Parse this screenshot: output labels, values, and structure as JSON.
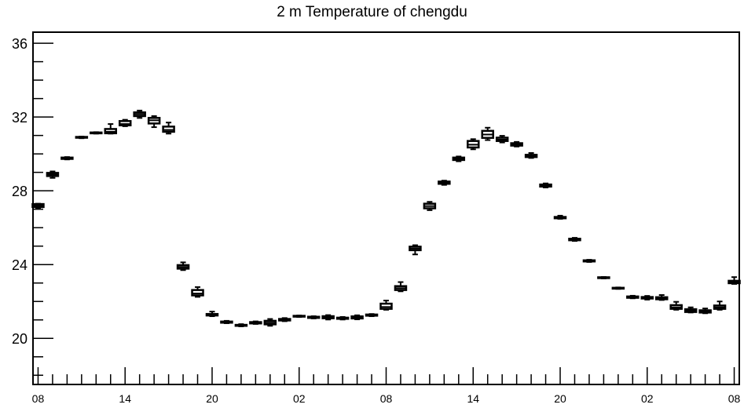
{
  "chart_data": {
    "type": "box",
    "title": "2 m Temperature of chengdu",
    "xlabel": "",
    "ylabel": "",
    "ylim": [
      17.5,
      36.6
    ],
    "yticks": [
      20,
      24,
      28,
      32,
      36
    ],
    "xlim": [
      -0.35,
      48.35
    ],
    "xticks": [
      {
        "x": 0,
        "label": "08"
      },
      {
        "x": 6,
        "label": "14"
      },
      {
        "x": 12,
        "label": "20"
      },
      {
        "x": 18,
        "label": "02"
      },
      {
        "x": 24,
        "label": "08"
      },
      {
        "x": 30,
        "label": "14"
      },
      {
        "x": 36,
        "label": "20"
      },
      {
        "x": 42,
        "label": "02"
      },
      {
        "x": 48,
        "label": "08"
      }
    ],
    "grid": false,
    "legend": "none",
    "colors": {
      "box": "#000000",
      "background": "#ffffff"
    },
    "boxes": [
      {
        "x": 0,
        "min": 27.05,
        "q1": 27.12,
        "median": 27.2,
        "q3": 27.28,
        "max": 27.3
      },
      {
        "x": 1,
        "min": 28.7,
        "q1": 28.8,
        "median": 28.88,
        "q3": 28.97,
        "max": 29.05
      },
      {
        "x": 2,
        "min": 29.7,
        "q1": 29.73,
        "median": 29.76,
        "q3": 29.8,
        "max": 29.83
      },
      {
        "x": 3,
        "min": 30.85,
        "q1": 30.88,
        "median": 30.9,
        "q3": 30.92,
        "max": 30.94
      },
      {
        "x": 4,
        "min": 31.1,
        "q1": 31.12,
        "median": 31.14,
        "q3": 31.16,
        "max": 31.18
      },
      {
        "x": 5,
        "min": 31.1,
        "q1": 31.12,
        "median": 31.2,
        "q3": 31.35,
        "max": 31.62
      },
      {
        "x": 6,
        "min": 31.5,
        "q1": 31.55,
        "median": 31.62,
        "q3": 31.78,
        "max": 31.85
      },
      {
        "x": 7,
        "min": 31.95,
        "q1": 32.05,
        "median": 32.15,
        "q3": 32.25,
        "max": 32.35
      },
      {
        "x": 8,
        "min": 31.45,
        "q1": 31.65,
        "median": 31.82,
        "q3": 31.95,
        "max": 32.05
      },
      {
        "x": 9,
        "min": 31.1,
        "q1": 31.2,
        "median": 31.3,
        "q3": 31.48,
        "max": 31.7
      },
      {
        "x": 10,
        "min": 23.7,
        "q1": 23.78,
        "median": 23.87,
        "q3": 23.97,
        "max": 24.12
      },
      {
        "x": 11,
        "min": 22.25,
        "q1": 22.33,
        "median": 22.43,
        "q3": 22.62,
        "max": 22.78
      },
      {
        "x": 12,
        "min": 21.2,
        "q1": 21.24,
        "median": 21.28,
        "q3": 21.32,
        "max": 21.45
      },
      {
        "x": 13,
        "min": 20.82,
        "q1": 20.85,
        "median": 20.88,
        "q3": 20.91,
        "max": 20.95
      },
      {
        "x": 14,
        "min": 20.65,
        "q1": 20.68,
        "median": 20.7,
        "q3": 20.73,
        "max": 20.77
      },
      {
        "x": 15,
        "min": 20.78,
        "q1": 20.81,
        "median": 20.85,
        "q3": 20.88,
        "max": 20.92
      },
      {
        "x": 16,
        "min": 20.68,
        "q1": 20.76,
        "median": 20.85,
        "q3": 20.95,
        "max": 21.05
      },
      {
        "x": 17,
        "min": 20.93,
        "q1": 20.97,
        "median": 21.01,
        "q3": 21.05,
        "max": 21.1
      },
      {
        "x": 18,
        "min": 21.16,
        "q1": 21.18,
        "median": 21.2,
        "q3": 21.22,
        "max": 21.24
      },
      {
        "x": 19,
        "min": 21.08,
        "q1": 21.11,
        "median": 21.14,
        "q3": 21.17,
        "max": 21.2
      },
      {
        "x": 20,
        "min": 21.02,
        "q1": 21.09,
        "median": 21.15,
        "q3": 21.2,
        "max": 21.26
      },
      {
        "x": 21,
        "min": 21.02,
        "q1": 21.06,
        "median": 21.09,
        "q3": 21.12,
        "max": 21.16
      },
      {
        "x": 22,
        "min": 21.03,
        "q1": 21.08,
        "median": 21.14,
        "q3": 21.19,
        "max": 21.25
      },
      {
        "x": 23,
        "min": 21.2,
        "q1": 21.23,
        "median": 21.26,
        "q3": 21.29,
        "max": 21.32
      },
      {
        "x": 24,
        "min": 21.55,
        "q1": 21.6,
        "median": 21.7,
        "q3": 21.88,
        "max": 22.05
      },
      {
        "x": 25,
        "min": 22.55,
        "q1": 22.62,
        "median": 22.72,
        "q3": 22.83,
        "max": 23.05
      },
      {
        "x": 26,
        "min": 24.55,
        "q1": 24.78,
        "median": 24.87,
        "q3": 24.97,
        "max": 25.05
      },
      {
        "x": 27,
        "min": 26.95,
        "q1": 27.05,
        "median": 27.17,
        "q3": 27.3,
        "max": 27.4
      },
      {
        "x": 28,
        "min": 28.32,
        "q1": 28.38,
        "median": 28.43,
        "q3": 28.5,
        "max": 28.55
      },
      {
        "x": 29,
        "min": 29.6,
        "q1": 29.67,
        "median": 29.74,
        "q3": 29.8,
        "max": 29.86
      },
      {
        "x": 30,
        "min": 30.25,
        "q1": 30.35,
        "median": 30.5,
        "q3": 30.7,
        "max": 30.8
      },
      {
        "x": 31,
        "min": 30.75,
        "q1": 30.87,
        "median": 31.05,
        "q3": 31.25,
        "max": 31.42
      },
      {
        "x": 32,
        "min": 30.62,
        "q1": 30.7,
        "median": 30.78,
        "q3": 30.88,
        "max": 30.98
      },
      {
        "x": 33,
        "min": 30.4,
        "q1": 30.45,
        "median": 30.52,
        "q3": 30.58,
        "max": 30.65
      },
      {
        "x": 34,
        "min": 29.78,
        "q1": 29.83,
        "median": 29.88,
        "q3": 29.95,
        "max": 30.05
      },
      {
        "x": 35,
        "min": 28.18,
        "q1": 28.23,
        "median": 28.28,
        "q3": 28.34,
        "max": 28.4
      },
      {
        "x": 36,
        "min": 26.48,
        "q1": 26.51,
        "median": 26.54,
        "q3": 26.58,
        "max": 26.65
      },
      {
        "x": 37,
        "min": 25.28,
        "q1": 25.32,
        "median": 25.36,
        "q3": 25.4,
        "max": 25.45
      },
      {
        "x": 38,
        "min": 24.14,
        "q1": 24.17,
        "median": 24.2,
        "q3": 24.23,
        "max": 24.26
      },
      {
        "x": 39,
        "min": 23.25,
        "q1": 23.27,
        "median": 23.29,
        "q3": 23.31,
        "max": 23.33
      },
      {
        "x": 40,
        "min": 22.68,
        "q1": 22.7,
        "median": 22.72,
        "q3": 22.74,
        "max": 22.76
      },
      {
        "x": 41,
        "min": 22.17,
        "q1": 22.2,
        "median": 22.23,
        "q3": 22.27,
        "max": 22.31
      },
      {
        "x": 42,
        "min": 22.1,
        "q1": 22.16,
        "median": 22.2,
        "q3": 22.24,
        "max": 22.3
      },
      {
        "x": 43,
        "min": 22.08,
        "q1": 22.12,
        "median": 22.17,
        "q3": 22.23,
        "max": 22.35
      },
      {
        "x": 44,
        "min": 21.55,
        "q1": 21.6,
        "median": 21.68,
        "q3": 21.8,
        "max": 21.98
      },
      {
        "x": 45,
        "min": 21.4,
        "q1": 21.43,
        "median": 21.5,
        "q3": 21.58,
        "max": 21.68
      },
      {
        "x": 46,
        "min": 21.36,
        "q1": 21.4,
        "median": 21.46,
        "q3": 21.52,
        "max": 21.62
      },
      {
        "x": 47,
        "min": 21.55,
        "q1": 21.6,
        "median": 21.68,
        "q3": 21.78,
        "max": 22.0
      },
      {
        "x": 48,
        "min": 22.95,
        "q1": 22.99,
        "median": 23.04,
        "q3": 23.12,
        "max": 23.32
      }
    ]
  }
}
